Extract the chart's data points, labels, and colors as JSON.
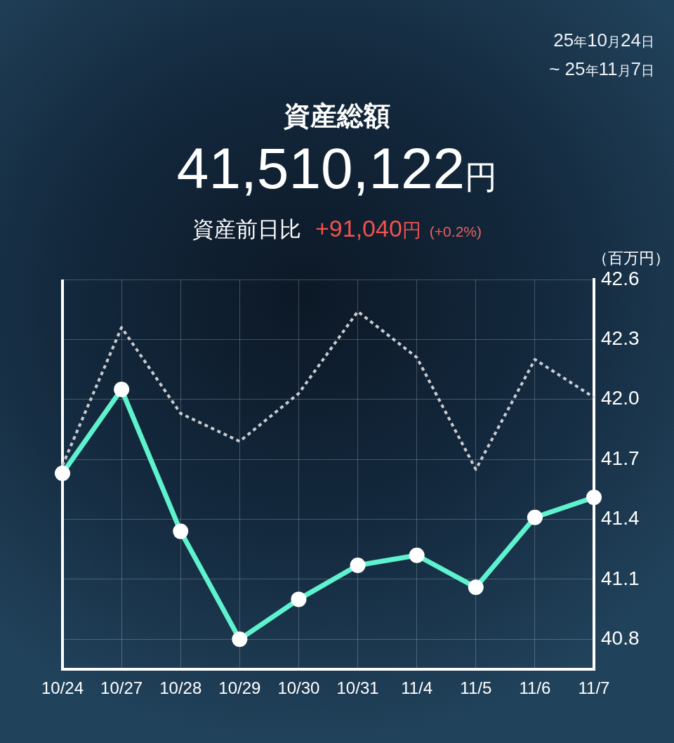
{
  "chart_data": {
    "type": "line",
    "title": "資産総額",
    "subtitle": "41,510,122円",
    "ylabel": "（百万円）",
    "annotations": [
      "資産前日比",
      "+91,040円",
      "(+0.2%)",
      "25年10月24日",
      "~ 25年11月7日"
    ],
    "categories": [
      "10/24",
      "10/27",
      "10/28",
      "10/29",
      "10/30",
      "10/31",
      "11/4",
      "11/5",
      "11/6",
      "11/7"
    ],
    "series": [
      {
        "color": "#5ef2cf",
        "marker": "circle",
        "values": [
          41.63,
          42.05,
          41.34,
          40.8,
          41.0,
          41.17,
          41.22,
          41.06,
          41.41,
          41.51
        ]
      },
      {
        "color": "#c9ccd1",
        "marker": "none",
        "line_style": "dotted",
        "values": [
          41.67,
          42.36,
          41.93,
          41.79,
          42.03,
          42.44,
          42.21,
          41.65,
          42.2,
          42.01
        ]
      }
    ],
    "ylim": [
      40.65,
      42.6
    ],
    "yticks": [
      40.8,
      41.1,
      41.4,
      41.7,
      {
        "value": 42,
        "label": "42.0"
      },
      42.3,
      42.6
    ],
    "grid": true
  }
}
